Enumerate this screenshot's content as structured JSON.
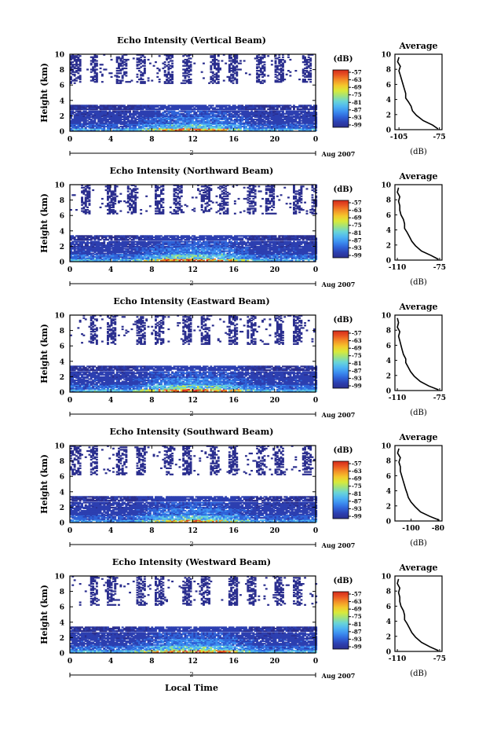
{
  "colorbar_unit": "(dB)",
  "colorbar_ticks": [
    "-57",
    "-63",
    "-69",
    "-75",
    "-81",
    "-87",
    "-93",
    "-99"
  ],
  "colormap": [
    "#2b2f8f",
    "#2c3fb0",
    "#2f63d8",
    "#3c8ef0",
    "#4fb6f2",
    "#6ad6d6",
    "#9fe27f",
    "#d8ea3a",
    "#f4c82c",
    "#f39327",
    "#ea5722",
    "#d42b1c"
  ],
  "date_label": "Aug 2007",
  "date_marker": "2",
  "xlabel": "Local Time",
  "avg_title": "Average",
  "avg_xlabel": "(dB)",
  "chart_data": [
    {
      "type": "heatmap",
      "title": "Echo Intensity (Vertical Beam)",
      "ylabel": "Height (km)",
      "x_ticks": [
        "0",
        "4",
        "8",
        "12",
        "16",
        "20",
        "0"
      ],
      "xlim": [
        0,
        24
      ],
      "y_ticks": [
        "0",
        "2",
        "4",
        "6",
        "8",
        "10"
      ],
      "ylim": [
        0,
        10
      ],
      "seed": 11,
      "bands": [
        {
          "range": [
            0.1,
            0.4
          ],
          "level": 6.5
        },
        {
          "range": [
            0.4,
            1.0
          ],
          "level": 3.2
        },
        {
          "range": [
            1.0,
            1.9
          ],
          "level": 1.8
        },
        {
          "range": [
            1.9,
            2.6
          ],
          "level": 1.2
        },
        {
          "range": [
            2.8,
            3.3
          ],
          "level": 0.8
        },
        {
          "range": [
            6.2,
            9.9
          ],
          "level": 0.2,
          "sparse": true
        }
      ],
      "profile": {
        "type": "line",
        "x_ticks": [
          "-105",
          "-75"
        ],
        "xlim": [
          -108,
          -73
        ],
        "y_ticks": [
          "0",
          "2",
          "4",
          "6",
          "8",
          "10"
        ],
        "ylim": [
          0,
          10
        ],
        "x": [
          -76,
          -80,
          -87,
          -92,
          -95,
          -96,
          -98,
          -100,
          -100,
          -101,
          -102,
          -103,
          -104,
          -105,
          -104,
          -106,
          -105
        ],
        "y": [
          0.1,
          0.6,
          1.2,
          1.9,
          2.5,
          3.1,
          3.7,
          4.2,
          4.8,
          5.4,
          6.0,
          6.6,
          7.2,
          7.8,
          8.4,
          9.0,
          9.6
        ]
      }
    },
    {
      "type": "heatmap",
      "title": "Echo Intensity (Northward Beam)",
      "ylabel": "Height (km)",
      "x_ticks": [
        "0",
        "4",
        "8",
        "12",
        "16",
        "20",
        "0"
      ],
      "xlim": [
        0,
        24
      ],
      "y_ticks": [
        "0",
        "2",
        "4",
        "6",
        "8",
        "10"
      ],
      "ylim": [
        0,
        10
      ],
      "seed": 23,
      "bands": [
        {
          "range": [
            0.1,
            0.4
          ],
          "level": 7.0
        },
        {
          "range": [
            0.4,
            1.0
          ],
          "level": 3.6
        },
        {
          "range": [
            1.0,
            1.9
          ],
          "level": 2.0
        },
        {
          "range": [
            1.9,
            2.6
          ],
          "level": 1.3
        },
        {
          "range": [
            2.8,
            3.3
          ],
          "level": 0.8
        },
        {
          "range": [
            6.2,
            9.9
          ],
          "level": 0.2,
          "sparse": true
        }
      ],
      "profile": {
        "type": "line",
        "x_ticks": [
          "-110",
          "-75"
        ],
        "xlim": [
          -112,
          -73
        ],
        "y_ticks": [
          "0",
          "2",
          "4",
          "6",
          "8",
          "10"
        ],
        "ylim": [
          0,
          10
        ],
        "x": [
          -76,
          -82,
          -90,
          -95,
          -98,
          -100,
          -102,
          -104,
          -104,
          -105,
          -107,
          -108,
          -108,
          -109,
          -108,
          -110,
          -109
        ],
        "y": [
          0.1,
          0.6,
          1.2,
          1.9,
          2.5,
          3.1,
          3.7,
          4.2,
          4.8,
          5.4,
          6.0,
          6.6,
          7.2,
          7.8,
          8.4,
          9.0,
          9.6
        ]
      }
    },
    {
      "type": "heatmap",
      "title": "Echo Intensity (Eastward Beam)",
      "ylabel": "Height (km)",
      "x_ticks": [
        "0",
        "4",
        "8",
        "12",
        "16",
        "20",
        "0"
      ],
      "xlim": [
        0,
        24
      ],
      "y_ticks": [
        "0",
        "2",
        "4",
        "6",
        "8",
        "10"
      ],
      "ylim": [
        0,
        10
      ],
      "seed": 37,
      "bands": [
        {
          "range": [
            0.1,
            0.4
          ],
          "level": 7.2
        },
        {
          "range": [
            0.4,
            1.0
          ],
          "level": 3.8
        },
        {
          "range": [
            1.0,
            1.9
          ],
          "level": 2.0
        },
        {
          "range": [
            1.9,
            2.6
          ],
          "level": 1.3
        },
        {
          "range": [
            2.8,
            3.3
          ],
          "level": 0.8
        },
        {
          "range": [
            6.2,
            9.9
          ],
          "level": 0.2,
          "sparse": true
        }
      ],
      "profile": {
        "type": "line",
        "x_ticks": [
          "-110",
          "-75"
        ],
        "xlim": [
          -112,
          -73
        ],
        "y_ticks": [
          "0",
          "2",
          "4",
          "6",
          "8",
          "10"
        ],
        "ylim": [
          0,
          10
        ],
        "x": [
          -76,
          -84,
          -91,
          -96,
          -99,
          -101,
          -103,
          -103,
          -105,
          -106,
          -107,
          -108,
          -109,
          -108,
          -110,
          -109,
          -110
        ],
        "y": [
          0.1,
          0.6,
          1.2,
          1.9,
          2.5,
          3.1,
          3.7,
          4.2,
          4.8,
          5.4,
          6.0,
          6.6,
          7.2,
          7.8,
          8.4,
          9.0,
          9.6
        ]
      }
    },
    {
      "type": "heatmap",
      "title": "Echo Intensity (Southward Beam)",
      "ylabel": "Height (km)",
      "x_ticks": [
        "0",
        "4",
        "8",
        "12",
        "16",
        "20",
        "0"
      ],
      "xlim": [
        0,
        24
      ],
      "y_ticks": [
        "0",
        "2",
        "4",
        "6",
        "8",
        "10"
      ],
      "ylim": [
        0,
        10
      ],
      "seed": 51,
      "bands": [
        {
          "range": [
            0.1,
            0.4
          ],
          "level": 5.8
        },
        {
          "range": [
            0.4,
            1.0
          ],
          "level": 3.2
        },
        {
          "range": [
            1.0,
            1.9
          ],
          "level": 1.8
        },
        {
          "range": [
            1.9,
            2.6
          ],
          "level": 1.2
        },
        {
          "range": [
            2.8,
            3.3
          ],
          "level": 0.8
        },
        {
          "range": [
            6.2,
            9.9
          ],
          "level": 0.2,
          "sparse": true
        }
      ],
      "profile": {
        "type": "line",
        "x_ticks": [
          "-100",
          "-80"
        ],
        "xlim": [
          -112,
          -77
        ],
        "y_ticks": [
          "0",
          "2",
          "4",
          "6",
          "8",
          "10"
        ],
        "ylim": [
          0,
          10
        ],
        "x": [
          -79,
          -86,
          -93,
          -97,
          -100,
          -102,
          -103,
          -104,
          -105,
          -106,
          -107,
          -108,
          -108,
          -109,
          -108,
          -110,
          -109
        ],
        "y": [
          0.1,
          0.6,
          1.2,
          1.9,
          2.5,
          3.1,
          3.7,
          4.2,
          4.8,
          5.4,
          6.0,
          6.6,
          7.2,
          7.8,
          8.4,
          9.0,
          9.6
        ]
      }
    },
    {
      "type": "heatmap",
      "title": "Echo Intensity (Westward Beam)",
      "ylabel": "Height (km)",
      "x_ticks": [
        "0",
        "4",
        "8",
        "12",
        "16",
        "20",
        "0"
      ],
      "xlim": [
        0,
        24
      ],
      "y_ticks": [
        "0",
        "2",
        "4",
        "6",
        "8",
        "10"
      ],
      "ylim": [
        0,
        10
      ],
      "seed": 67,
      "bands": [
        {
          "range": [
            0.1,
            0.4
          ],
          "level": 7.0
        },
        {
          "range": [
            0.4,
            1.0
          ],
          "level": 3.6
        },
        {
          "range": [
            1.0,
            1.9
          ],
          "level": 2.0
        },
        {
          "range": [
            1.9,
            2.6
          ],
          "level": 1.3
        },
        {
          "range": [
            2.8,
            3.3
          ],
          "level": 0.8
        },
        {
          "range": [
            6.2,
            9.9
          ],
          "level": 0.2,
          "sparse": true
        }
      ],
      "profile": {
        "type": "line",
        "x_ticks": [
          "-110",
          "-75"
        ],
        "xlim": [
          -112,
          -73
        ],
        "y_ticks": [
          "0",
          "2",
          "4",
          "6",
          "8",
          "10"
        ],
        "ylim": [
          0,
          10
        ],
        "x": [
          -76,
          -83,
          -90,
          -95,
          -98,
          -100,
          -102,
          -104,
          -104,
          -105,
          -107,
          -108,
          -108,
          -109,
          -108,
          -110,
          -109
        ],
        "y": [
          0.1,
          0.6,
          1.2,
          1.9,
          2.5,
          3.1,
          3.7,
          4.2,
          4.8,
          5.4,
          6.0,
          6.6,
          7.2,
          7.8,
          8.4,
          9.0,
          9.6
        ]
      }
    }
  ]
}
